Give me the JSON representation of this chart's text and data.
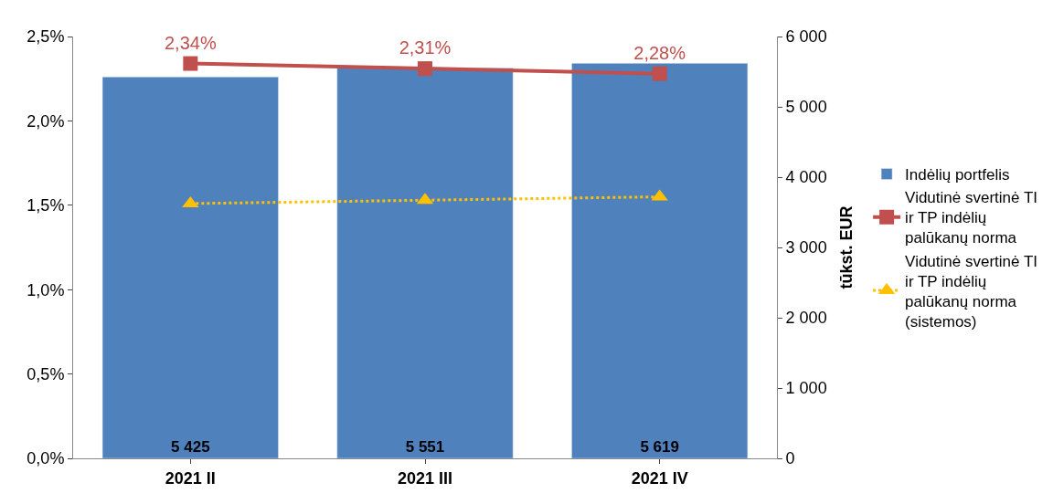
{
  "chart_data": {
    "type": "bar",
    "categories": [
      "2021 II",
      "2021 III",
      "2021 IV"
    ],
    "series": [
      {
        "name": "Indėlių portfelis",
        "axis": "y2",
        "color": "#4f81bd",
        "values": [
          5425,
          5551,
          5619
        ],
        "value_labels": [
          "5 425",
          "5 551",
          "5 619"
        ]
      },
      {
        "name": "Vidutinė svertinė TI ir TP indėlių palūkanų norma",
        "type": "line",
        "color": "#c0504d",
        "marker": "square",
        "line_style": "solid",
        "values": [
          2.34,
          2.31,
          2.28
        ],
        "value_labels": [
          "2,34%",
          "2,31%",
          "2,28%"
        ]
      },
      {
        "name": "Vidutinė svertinė TI ir TP indėlių palūkanų norma (sistemos)",
        "type": "line",
        "color": "#ffc000",
        "marker": "triangle",
        "line_style": "dotted",
        "values": [
          1.51,
          1.53,
          1.55
        ]
      }
    ],
    "ylim": [
      0,
      2.5
    ],
    "yticks": [
      {
        "value": 0,
        "label": "0,0%"
      },
      {
        "value": 0.5,
        "label": "0,5%"
      },
      {
        "value": 1,
        "label": "1,0%"
      },
      {
        "value": 1.5,
        "label": "1,5%"
      },
      {
        "value": 2,
        "label": "2,0%"
      },
      {
        "value": 2.5,
        "label": "2,5%"
      }
    ],
    "y2lim": [
      0,
      6000
    ],
    "y2ticks": [
      {
        "value": 0,
        "label": "0"
      },
      {
        "value": 1000,
        "label": "1 000"
      },
      {
        "value": 2000,
        "label": "2 000"
      },
      {
        "value": 3000,
        "label": "3 000"
      },
      {
        "value": 4000,
        "label": "4 000"
      },
      {
        "value": 5000,
        "label": "5 000"
      },
      {
        "value": 6000,
        "label": "6 000"
      }
    ],
    "y2label": "tūkst. EUR",
    "legend": "right"
  }
}
